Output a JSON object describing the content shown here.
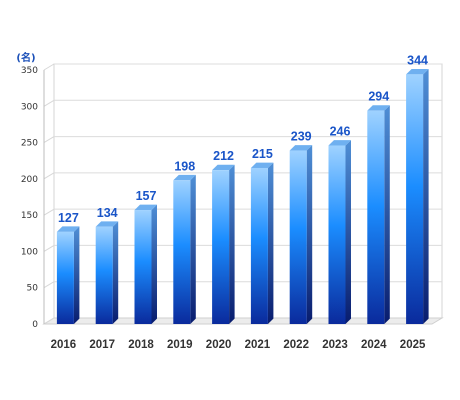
{
  "chart_data": {
    "type": "bar",
    "unit_label": "(名)",
    "categories": [
      "2016",
      "2017",
      "2018",
      "2019",
      "2020",
      "2021",
      "2022",
      "2023",
      "2024",
      "2025"
    ],
    "values": [
      127,
      134,
      157,
      198,
      212,
      215,
      239,
      246,
      294,
      344
    ],
    "yticks": [
      "0",
      "50",
      "100",
      "150",
      "200",
      "250",
      "300",
      "350"
    ],
    "ylim": [
      0,
      350
    ],
    "grid": true,
    "bar_color_top": "#9fd2ff",
    "bar_color_bottom": "#0a2a9c",
    "label_color": "#1a55c8"
  }
}
